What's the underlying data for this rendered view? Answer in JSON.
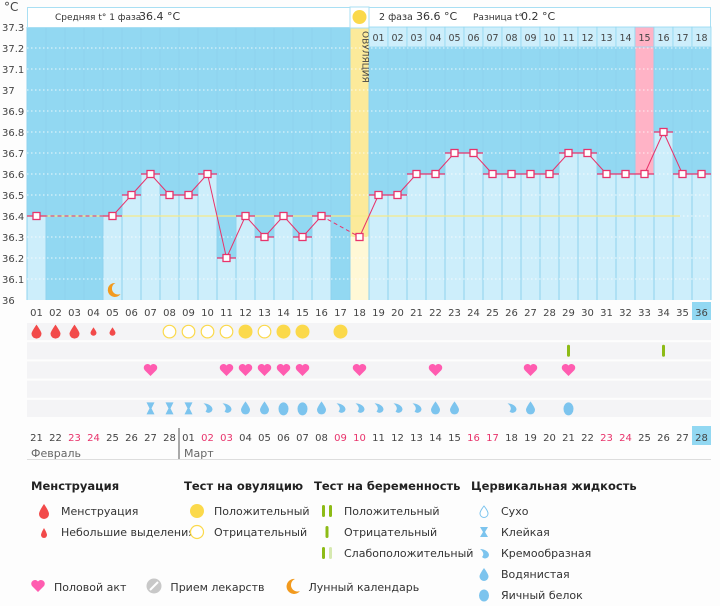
{
  "header": {
    "unit": "°C",
    "phase1_label": "Средняя t° 1 фаза",
    "phase1_value": "36.4 °C",
    "phase2_label": "2 фаза",
    "phase2_value": "36.6 °C",
    "diff_label": "Разница t°",
    "diff_value": "0.2 °C",
    "ovulation_label": "ОВУЛЯЦИЯ"
  },
  "colors": {
    "chart_bg": "#92d8f2",
    "bar_fill": "#cdeefb",
    "line": "#e8336b",
    "coverline": "#f5e98a",
    "ovulation": "#fcea9a",
    "highlight_pink": "#ffb3c6",
    "weekend": "#e8336b",
    "menstruation": "#f24a4a",
    "ovulation_test": "#fbd94b",
    "pregnancy_test": "#8dbb16",
    "sex": "#ff5cb0",
    "fluid": "#7cc4ee",
    "moon": "#f29a1e"
  },
  "chart_data": {
    "type": "bar+line",
    "title": "Базальная температура",
    "ylabel": "°C",
    "ylim": [
      36,
      37.3
    ],
    "yticks": [
      "36",
      "36.1",
      "36.2",
      "36.3",
      "36.4",
      "36.5",
      "36.6",
      "36.7",
      "36.8",
      "36.9",
      "37",
      "37.1",
      "37.2",
      "37.3"
    ],
    "cycle_days": [
      "01",
      "02",
      "03",
      "04",
      "05",
      "06",
      "07",
      "08",
      "09",
      "10",
      "11",
      "12",
      "13",
      "14",
      "15",
      "16",
      "17",
      "18",
      "19",
      "20",
      "21",
      "22",
      "23",
      "24",
      "25",
      "26",
      "27",
      "28",
      "29",
      "30",
      "31",
      "32",
      "33",
      "34",
      "35",
      "36"
    ],
    "temperatures": [
      36.4,
      null,
      null,
      null,
      36.4,
      36.5,
      36.6,
      36.5,
      36.5,
      36.6,
      36.2,
      36.4,
      36.3,
      36.4,
      36.3,
      36.4,
      null,
      36.3,
      36.5,
      36.5,
      36.6,
      36.6,
      36.7,
      36.7,
      36.6,
      36.6,
      36.6,
      36.6,
      36.7,
      36.7,
      36.6,
      36.6,
      36.6,
      36.8,
      36.6,
      36.6
    ],
    "coverline": 36.4,
    "ovulation_day": 18,
    "post_ovulation_days": [
      "01",
      "02",
      "03",
      "04",
      "05",
      "06",
      "07",
      "08",
      "09",
      "10",
      "11",
      "12",
      "13",
      "14",
      "15",
      "16",
      "17",
      "18"
    ],
    "highlight_post_ovulation_day": 15,
    "current_day": 36,
    "moon_day": 5,
    "dates": [
      "21",
      "22",
      "23",
      "24",
      "25",
      "26",
      "27",
      "28",
      "01",
      "02",
      "03",
      "04",
      "05",
      "06",
      "07",
      "08",
      "09",
      "10",
      "11",
      "12",
      "13",
      "14",
      "15",
      "16",
      "17",
      "18",
      "19",
      "20",
      "21",
      "22",
      "23",
      "24",
      "25",
      "26",
      "27",
      "28"
    ],
    "weekend_dates_idx": [
      2,
      3,
      9,
      10,
      16,
      17,
      23,
      24,
      30,
      31
    ],
    "months": [
      {
        "label": "Февраль",
        "start_idx": 0
      },
      {
        "label": "Март",
        "start_idx": 8
      }
    ],
    "menstruation": [
      {
        "day": 1,
        "kind": "full"
      },
      {
        "day": 2,
        "kind": "full"
      },
      {
        "day": 3,
        "kind": "full"
      },
      {
        "day": 4,
        "kind": "light"
      },
      {
        "day": 5,
        "kind": "light"
      }
    ],
    "ovulation_tests": [
      {
        "day": 8,
        "result": "negative"
      },
      {
        "day": 9,
        "result": "negative"
      },
      {
        "day": 10,
        "result": "negative"
      },
      {
        "day": 11,
        "result": "negative"
      },
      {
        "day": 12,
        "result": "positive"
      },
      {
        "day": 13,
        "result": "negative"
      },
      {
        "day": 14,
        "result": "positive"
      },
      {
        "day": 15,
        "result": "positive"
      },
      {
        "day": 17,
        "result": "positive"
      }
    ],
    "pregnancy_tests": [
      {
        "day": 29,
        "result": "negative"
      },
      {
        "day": 34,
        "result": "negative"
      }
    ],
    "sex_days": [
      7,
      11,
      12,
      13,
      14,
      15,
      18,
      22,
      27,
      29
    ],
    "cervical_fluid": [
      {
        "day": 7,
        "kind": "sticky"
      },
      {
        "day": 8,
        "kind": "sticky"
      },
      {
        "day": 9,
        "kind": "sticky"
      },
      {
        "day": 10,
        "kind": "creamy"
      },
      {
        "day": 11,
        "kind": "creamy"
      },
      {
        "day": 12,
        "kind": "watery"
      },
      {
        "day": 13,
        "kind": "watery"
      },
      {
        "day": 14,
        "kind": "eggwhite"
      },
      {
        "day": 15,
        "kind": "eggwhite"
      },
      {
        "day": 16,
        "kind": "watery"
      },
      {
        "day": 17,
        "kind": "creamy"
      },
      {
        "day": 18,
        "kind": "creamy"
      },
      {
        "day": 19,
        "kind": "creamy"
      },
      {
        "day": 20,
        "kind": "creamy"
      },
      {
        "day": 21,
        "kind": "creamy"
      },
      {
        "day": 22,
        "kind": "watery"
      },
      {
        "day": 23,
        "kind": "watery"
      },
      {
        "day": 26,
        "kind": "creamy"
      },
      {
        "day": 27,
        "kind": "watery"
      },
      {
        "day": 29,
        "kind": "eggwhite"
      }
    ]
  },
  "legend": {
    "menstruation": {
      "title": "Менструация",
      "items": [
        "Менструация",
        "Небольшие выделения"
      ]
    },
    "ovulation_test": {
      "title": "Тест на овуляцию",
      "items": [
        "Положительный",
        "Отрицательный"
      ]
    },
    "pregnancy_test": {
      "title": "Тест на беременность",
      "items": [
        "Положительный",
        "Отрицательный",
        "Слабоположительный"
      ]
    },
    "cervical_fluid": {
      "title": "Цервикальная жидкость",
      "items": [
        "Сухо",
        "Клейкая",
        "Кремообразная",
        "Водянистая",
        "Яичный белок"
      ]
    },
    "bottom": [
      "Половой акт",
      "Прием лекарств",
      "Лунный календарь"
    ]
  }
}
